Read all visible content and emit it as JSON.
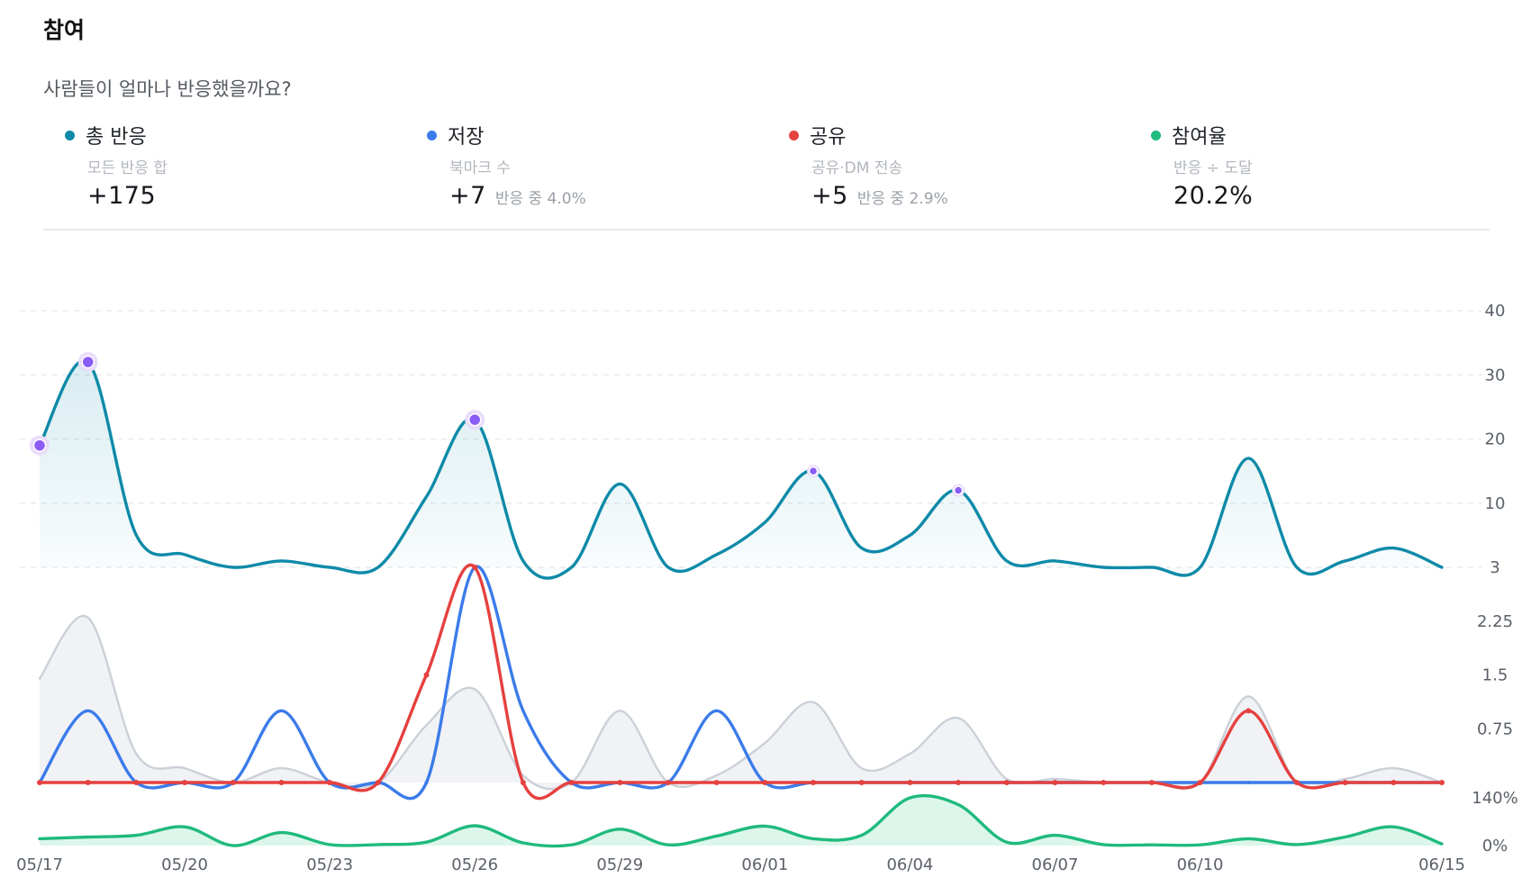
{
  "header": {
    "title": "참여",
    "subtitle": "사람들이 얼마나 반응했을까요?"
  },
  "metrics": [
    {
      "label": "총 반응",
      "desc": "모든 반응 합",
      "value": "+175",
      "note": "",
      "color": "#0e8aa8"
    },
    {
      "label": "저장",
      "desc": "북마크 수",
      "value": "+7",
      "note": "반응 중 4.0%",
      "color": "#3b7bea"
    },
    {
      "label": "공유",
      "desc": "공유·DM 전송",
      "value": "+5",
      "note": "반응 중 2.9%",
      "color": "#e5413f"
    },
    {
      "label": "참여율",
      "desc": "반응 ÷ 도달",
      "value": "20.2%",
      "note": "",
      "color": "#1fba7d"
    }
  ],
  "chart_data": [
    {
      "type": "area",
      "x": [
        "05/17",
        "05/18",
        "05/19",
        "05/20",
        "05/21",
        "05/22",
        "05/23",
        "05/24",
        "05/25",
        "05/26",
        "05/27",
        "05/28",
        "05/29",
        "05/30",
        "05/31",
        "06/01",
        "06/02",
        "06/03",
        "06/04",
        "06/05",
        "06/06",
        "06/07",
        "06/08",
        "06/09",
        "06/10",
        "06/11",
        "06/12",
        "06/13",
        "06/14",
        "06/15"
      ],
      "series": [
        {
          "values": [
            19,
            32,
            5,
            2,
            0,
            1,
            0,
            0,
            11,
            23,
            1,
            0,
            13,
            0,
            2,
            7,
            15,
            3,
            5,
            12,
            1,
            1,
            0,
            0,
            0,
            17,
            0,
            1,
            3,
            0
          ],
          "color": "#0e8aa8"
        }
      ],
      "highlight_points": [
        0,
        1,
        9,
        16,
        19
      ],
      "yticks": [
        40,
        30,
        20,
        10
      ],
      "ylim": [
        0,
        40
      ]
    },
    {
      "type": "line",
      "x": [
        "05/17",
        "05/18",
        "05/19",
        "05/20",
        "05/21",
        "05/22",
        "05/23",
        "05/24",
        "05/25",
        "05/26",
        "05/27",
        "05/28",
        "05/29",
        "05/30",
        "05/31",
        "06/01",
        "06/02",
        "06/03",
        "06/04",
        "06/05",
        "06/06",
        "06/07",
        "06/08",
        "06/09",
        "06/10",
        "06/11",
        "06/12",
        "06/13",
        "06/14",
        "06/15"
      ],
      "series": [
        {
          "values": [
            1.45,
            2.3,
            0.4,
            0.2,
            0,
            0.2,
            0,
            0,
            0.8,
            1.3,
            0.1,
            0,
            1.0,
            0,
            0.1,
            0.55,
            1.12,
            0.2,
            0.4,
            0.9,
            0.05,
            0.05,
            0,
            0,
            0,
            1.2,
            0,
            0.05,
            0.2,
            0
          ],
          "color": "#cbd0d8",
          "fill": "#eef0f5"
        },
        {
          "values": [
            0,
            1,
            0,
            0,
            0,
            1,
            0,
            0,
            0,
            3,
            1,
            0,
            0,
            0,
            1,
            0,
            0,
            0,
            0,
            0,
            0,
            0,
            0,
            0,
            0,
            0,
            0,
            0,
            0,
            0
          ],
          "color": "#3b7bea"
        },
        {
          "values": [
            0,
            0,
            0,
            0,
            0,
            0,
            0,
            0,
            1.5,
            3,
            0,
            0,
            0,
            0,
            0,
            0,
            0,
            0,
            0,
            0,
            0,
            0,
            0,
            0,
            0,
            1,
            0,
            0,
            0,
            0
          ],
          "color": "#e5413f"
        }
      ],
      "yticks": [
        3,
        2.25,
        1.5,
        0.75
      ],
      "ylim": [
        0,
        3
      ]
    },
    {
      "type": "area",
      "x": [
        "05/17",
        "05/18",
        "05/19",
        "05/20",
        "05/21",
        "05/22",
        "05/23",
        "05/24",
        "05/25",
        "05/26",
        "05/27",
        "05/28",
        "05/29",
        "05/30",
        "05/31",
        "06/01",
        "06/02",
        "06/03",
        "06/04",
        "06/05",
        "06/06",
        "06/07",
        "06/08",
        "06/09",
        "06/10",
        "06/11",
        "06/12",
        "06/13",
        "06/14",
        "06/15"
      ],
      "series": [
        {
          "values": [
            20,
            25,
            30,
            55,
            0,
            38,
            3,
            3,
            10,
            58,
            8,
            2,
            48,
            2,
            28,
            57,
            20,
            30,
            140,
            120,
            10,
            30,
            3,
            2,
            2,
            20,
            3,
            25,
            55,
            5
          ],
          "color": "#1fba7d",
          "fill": "#d6f4e7"
        }
      ],
      "yticks": [
        "140%",
        "0%"
      ],
      "ylim": [
        0,
        140
      ]
    }
  ],
  "x_axis": {
    "labels": [
      "05/17",
      "05/20",
      "05/23",
      "05/26",
      "05/29",
      "06/01",
      "06/04",
      "06/07",
      "06/10",
      "06/15"
    ]
  }
}
